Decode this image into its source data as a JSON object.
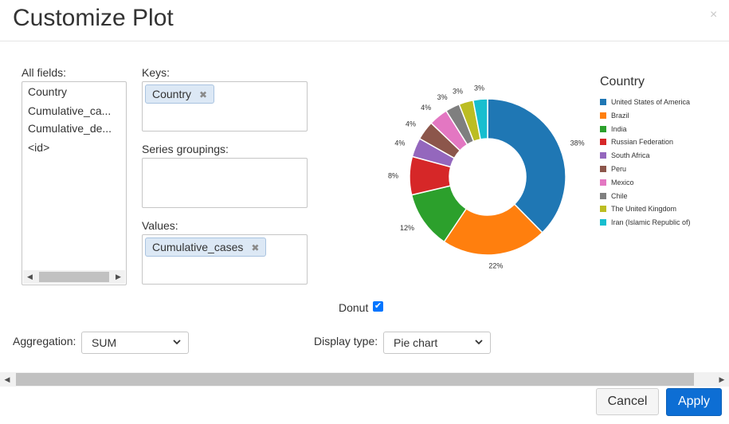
{
  "dialog": {
    "title": "Customize Plot",
    "close_glyph": "×"
  },
  "fields": {
    "label": "All fields:",
    "items": [
      "Country",
      "Cumulative_ca...",
      "Cumulative_de...",
      "<id>"
    ]
  },
  "keys": {
    "label": "Keys:",
    "chips": [
      "Country"
    ]
  },
  "series_groupings": {
    "label": "Series groupings:"
  },
  "values": {
    "label": "Values:",
    "chips": [
      "Cumulative_cases"
    ]
  },
  "donut": {
    "label": "Donut",
    "checked": true
  },
  "aggregation": {
    "label": "Aggregation:",
    "selected": "SUM"
  },
  "display_type": {
    "label": "Display type:",
    "selected": "Pie chart"
  },
  "buttons": {
    "cancel": "Cancel",
    "apply": "Apply"
  },
  "icons": {
    "remove_chip": "close-icon",
    "dropdown": "chevron-down-icon",
    "scroll_left": "arrow-left-icon",
    "scroll_right": "arrow-right-icon"
  },
  "colors": {
    "accent": "#0d6ed4",
    "checkbox": "#0075ff"
  },
  "chart_data": {
    "type": "pie",
    "donut": true,
    "legend_title": "Country",
    "legend_position": "right",
    "categories": [
      "United States of America",
      "Brazil",
      "India",
      "Russian Federation",
      "South Africa",
      "Peru",
      "Mexico",
      "Chile",
      "The United Kingdom",
      "Iran (Islamic Republic of)"
    ],
    "values": [
      38,
      22,
      12,
      8,
      4,
      4,
      4,
      3,
      3,
      3
    ],
    "labels": [
      "38%",
      "22%",
      "12%",
      "8%",
      "4%",
      "4%",
      "4%",
      "3%",
      "3%",
      "3%"
    ],
    "colors": [
      "#1f77b4",
      "#ff7f0e",
      "#2ca02c",
      "#d62728",
      "#9467bd",
      "#8c564b",
      "#e377c2",
      "#7f7f7f",
      "#bcbd22",
      "#17becf"
    ]
  }
}
